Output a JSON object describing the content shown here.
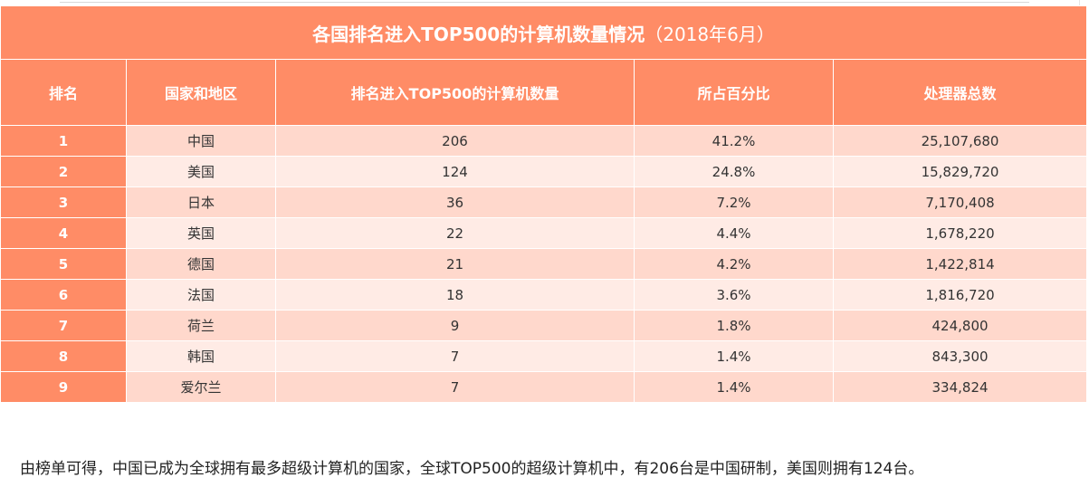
{
  "table": {
    "title": "各国排名进入TOP500的计算机数量情况",
    "title_sub": "（2018年6月）",
    "headers": [
      "排名",
      "国家和地区",
      "排名进入TOP500的计算机数量",
      "所占百分比",
      "处理器总数"
    ],
    "rows": [
      {
        "rank": "1",
        "country": "中国",
        "count": "206",
        "percent": "41.2%",
        "processors": "25,107,680"
      },
      {
        "rank": "2",
        "country": "美国",
        "count": "124",
        "percent": "24.8%",
        "processors": "15,829,720"
      },
      {
        "rank": "3",
        "country": "日本",
        "count": "36",
        "percent": "7.2%",
        "processors": "7,170,408"
      },
      {
        "rank": "4",
        "country": "英国",
        "count": "22",
        "percent": "4.4%",
        "processors": "1,678,220"
      },
      {
        "rank": "5",
        "country": "德国",
        "count": "21",
        "percent": "4.2%",
        "processors": "1,422,814"
      },
      {
        "rank": "6",
        "country": "法国",
        "count": "18",
        "percent": "3.6%",
        "processors": "1,816,720"
      },
      {
        "rank": "7",
        "country": "荷兰",
        "count": "9",
        "percent": "1.8%",
        "processors": "424,800"
      },
      {
        "rank": "8",
        "country": "韩国",
        "count": "7",
        "percent": "1.4%",
        "processors": "843,300"
      },
      {
        "rank": "9",
        "country": "爱尔兰",
        "count": "7",
        "percent": "1.4%",
        "processors": "334,824"
      }
    ]
  },
  "caption": "由榜单可得，中国已成为全球拥有最多超级计算机的国家，全球TOP500的超级计算机中，有206台是中国研制，美国则拥有124台。",
  "colors": {
    "header_bg": "#ff8c66",
    "row_odd_bg": "#ffd8cc",
    "row_even_bg": "#ffebe5",
    "header_text": "#ffffff"
  }
}
